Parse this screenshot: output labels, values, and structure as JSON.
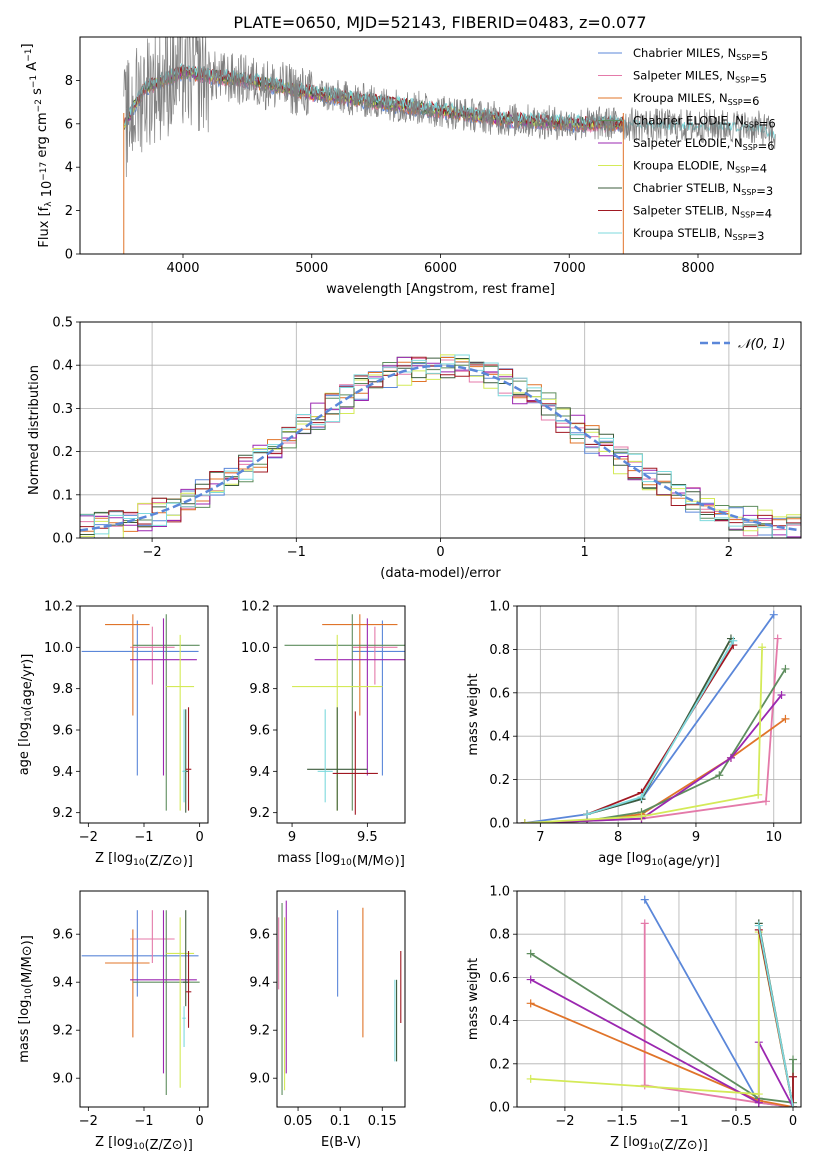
{
  "figure_title": "PLATE=0650, MJD=52143, FIBERID=0483, z=0.077",
  "series": [
    {
      "key": "chabrier_miles",
      "label": "Chabrier MILES, N_SSP=5",
      "color": "#5b87d9"
    },
    {
      "key": "salpeter_miles",
      "label": "Salpeter MILES, N_SSP=5",
      "color": "#e47aa9"
    },
    {
      "key": "kroupa_miles",
      "label": "Kroupa MILES, N_SSP=6",
      "color": "#e0742a"
    },
    {
      "key": "chabrier_elodie",
      "label": "Chabrier ELODIE, N_SSP=6",
      "color": "#5e8d5e"
    },
    {
      "key": "salpeter_elodie",
      "label": "Salpeter ELODIE, N_SSP=6",
      "color": "#9b27b0"
    },
    {
      "key": "kroupa_elodie",
      "label": "Kroupa ELODIE, N_SSP=4",
      "color": "#d4ea58"
    },
    {
      "key": "chabrier_stelib",
      "label": "Chabrier STELIB, N_SSP=3",
      "color": "#3d5c3d"
    },
    {
      "key": "salpeter_stelib",
      "label": "Salpeter STELIB, N_SSP=4",
      "color": "#a01822"
    },
    {
      "key": "kroupa_stelib",
      "label": "Kroupa STELIB, N_SSP=3",
      "color": "#7dd9dd"
    }
  ],
  "data_color": "#808080",
  "chart_data": [
    {
      "id": "spectrum",
      "type": "line",
      "xlabel": "wavelength [Angstrom, rest frame]",
      "ylabel": "Flux [f_λ 10^-17 erg cm^-2 s^-1 A^-1]",
      "xlim": [
        3200,
        8800
      ],
      "ylim": [
        0,
        10
      ],
      "xticks": [
        4000,
        5000,
        6000,
        7000,
        8000
      ],
      "yticks": [
        0,
        2,
        4,
        6,
        8
      ],
      "grid": false,
      "legend": "top-right",
      "continuum": {
        "x": [
          3550,
          3700,
          4000,
          4200,
          4500,
          5000,
          5500,
          6000,
          6500,
          7000,
          7400
        ],
        "y": [
          6.0,
          7.6,
          8.4,
          8.2,
          8.0,
          7.4,
          7.0,
          6.6,
          6.2,
          6.0,
          6.0
        ]
      },
      "red_tail": {
        "x": [
          7400,
          7800,
          8200,
          8500,
          8600
        ],
        "y": [
          6.0,
          5.9,
          5.9,
          5.8,
          5.4
        ]
      }
    },
    {
      "id": "residuals",
      "type": "histogram",
      "xlabel": "(data-model)/error",
      "ylabel": "Normed distribution",
      "xlim": [
        -2.5,
        2.5
      ],
      "ylim": [
        0,
        0.5
      ],
      "xticks": [
        -2,
        -1,
        0,
        1,
        2
      ],
      "yticks": [
        0.0,
        0.1,
        0.2,
        0.3,
        0.4,
        0.5
      ],
      "grid": true,
      "legend": "top-right",
      "reference_label": "𝒩(0, 1)",
      "reference_color": "#5b87d9",
      "bin_width": 0.1
    },
    {
      "id": "age_vs_Z",
      "type": "errorbar",
      "xlabel": "Z [log10(Z/Z⊙)]",
      "ylabel": "age  [log10(age/yr)]",
      "xlim": [
        -2.15,
        0.15
      ],
      "ylim": [
        9.15,
        10.2
      ],
      "xticks": [
        -2,
        -1,
        0
      ],
      "yticks": [
        9.2,
        9.4,
        9.6,
        9.8,
        10.0,
        10.2
      ],
      "grid": false,
      "points": [
        {
          "s": 0,
          "x": -1.12,
          "xerr": [
            1.0,
            1.1
          ],
          "y": 9.98,
          "yerr": [
            0.6,
            0.15
          ]
        },
        {
          "s": 1,
          "x": -0.85,
          "xerr": [
            0.4,
            0.4
          ],
          "y": 10.0,
          "yerr": [
            0.18,
            0.1
          ]
        },
        {
          "s": 2,
          "x": -1.2,
          "xerr": [
            0.5,
            0.3
          ],
          "y": 10.11,
          "yerr": [
            0.44,
            0.05
          ]
        },
        {
          "s": 3,
          "x": -0.6,
          "xerr": [
            0.6,
            0.6
          ],
          "y": 10.01,
          "yerr": [
            0.8,
            0.15
          ]
        },
        {
          "s": 4,
          "x": -0.65,
          "xerr": [
            0.6,
            0.6
          ],
          "y": 9.94,
          "yerr": [
            0.56,
            0.2
          ]
        },
        {
          "s": 5,
          "x": -0.35,
          "xerr": [
            0.25,
            0.25
          ],
          "y": 9.81,
          "yerr": [
            0.6,
            0.25
          ]
        },
        {
          "s": 6,
          "x": -0.25,
          "xerr": [
            0.05,
            0.05
          ],
          "y": 9.4,
          "yerr": [
            0.2,
            0.3
          ]
        },
        {
          "s": 7,
          "x": -0.2,
          "xerr": [
            0.05,
            0.05
          ],
          "y": 9.41,
          "yerr": [
            0.2,
            0.3
          ]
        },
        {
          "s": 8,
          "x": -0.28,
          "xerr": [
            0.03,
            0.03
          ],
          "y": 9.4,
          "yerr": [
            0.15,
            0.3
          ]
        }
      ]
    },
    {
      "id": "age_vs_mass",
      "type": "errorbar",
      "xlabel": "mass [log10(M/M⊙)]",
      "ylabel": "",
      "xlim": [
        8.9,
        9.75
      ],
      "ylim": [
        9.15,
        10.2
      ],
      "xticks": [
        9.0,
        9.5
      ],
      "yticks": [
        9.2,
        9.4,
        9.6,
        9.8,
        10.0,
        10.2
      ],
      "grid": false,
      "points": [
        {
          "s": 0,
          "x": 9.6,
          "xerr": [
            0.2,
            0.2
          ],
          "y": 9.98,
          "yerr": [
            0.6,
            0.15
          ]
        },
        {
          "s": 1,
          "x": 9.55,
          "xerr": [
            0.15,
            0.15
          ],
          "y": 10.0,
          "yerr": [
            0.18,
            0.1
          ]
        },
        {
          "s": 2,
          "x": 9.45,
          "xerr": [
            0.25,
            0.25
          ],
          "y": 10.11,
          "yerr": [
            0.44,
            0.05
          ]
        },
        {
          "s": 3,
          "x": 9.4,
          "xerr": [
            0.45,
            0.45
          ],
          "y": 10.01,
          "yerr": [
            0.8,
            0.15
          ]
        },
        {
          "s": 4,
          "x": 9.5,
          "xerr": [
            0.35,
            0.35
          ],
          "y": 9.94,
          "yerr": [
            0.56,
            0.2
          ]
        },
        {
          "s": 5,
          "x": 9.3,
          "xerr": [
            0.3,
            0.3
          ],
          "y": 9.81,
          "yerr": [
            0.6,
            0.25
          ]
        },
        {
          "s": 6,
          "x": 9.3,
          "xerr": [
            0.2,
            0.2
          ],
          "y": 9.41,
          "yerr": [
            0.2,
            0.3
          ]
        },
        {
          "s": 7,
          "x": 9.42,
          "xerr": [
            0.15,
            0.15
          ],
          "y": 9.39,
          "yerr": [
            0.2,
            0.3
          ]
        },
        {
          "s": 8,
          "x": 9.22,
          "xerr": [
            0.05,
            0.05
          ],
          "y": 9.4,
          "yerr": [
            0.15,
            0.3
          ]
        }
      ]
    },
    {
      "id": "weight_vs_age",
      "type": "line",
      "xlabel": "age  [log10(age/yr)]",
      "ylabel": "mass weight",
      "xlim": [
        6.7,
        10.35
      ],
      "ylim": [
        0,
        1
      ],
      "xticks": [
        7,
        8,
        9,
        10
      ],
      "yticks": [
        0.0,
        0.2,
        0.4,
        0.6,
        0.8,
        1.0
      ],
      "grid": true,
      "lines": [
        {
          "s": 0,
          "x": [
            6.8,
            7.6,
            8.3,
            10.0
          ],
          "y": [
            0.0,
            0.04,
            0.11,
            0.96
          ]
        },
        {
          "s": 1,
          "x": [
            6.8,
            7.6,
            8.3,
            9.9,
            10.05
          ],
          "y": [
            0.0,
            0.01,
            0.02,
            0.1,
            0.85
          ]
        },
        {
          "s": 2,
          "x": [
            6.8,
            7.6,
            8.3,
            9.45,
            10.15
          ],
          "y": [
            0.0,
            0.01,
            0.04,
            0.3,
            0.48
          ]
        },
        {
          "s": 3,
          "x": [
            6.8,
            7.6,
            8.3,
            9.3,
            10.15
          ],
          "y": [
            0.0,
            0.01,
            0.05,
            0.22,
            0.71
          ]
        },
        {
          "s": 4,
          "x": [
            6.8,
            7.6,
            8.3,
            9.45,
            10.1
          ],
          "y": [
            0.0,
            0.01,
            0.02,
            0.3,
            0.59
          ]
        },
        {
          "s": 5,
          "x": [
            6.8,
            8.3,
            9.8,
            9.85
          ],
          "y": [
            0.0,
            0.03,
            0.13,
            0.81
          ]
        },
        {
          "s": 6,
          "x": [
            7.6,
            8.3,
            9.45
          ],
          "y": [
            0.04,
            0.11,
            0.85
          ]
        },
        {
          "s": 7,
          "x": [
            7.6,
            8.3,
            9.48
          ],
          "y": [
            0.04,
            0.14,
            0.82
          ]
        },
        {
          "s": 8,
          "x": [
            7.6,
            8.3,
            9.48
          ],
          "y": [
            0.04,
            0.12,
            0.84
          ]
        }
      ]
    },
    {
      "id": "mass_vs_Z",
      "type": "errorbar",
      "xlabel": "Z [log10(Z/Z⊙)]",
      "ylabel": "mass [log10(M/M⊙)]",
      "xlim": [
        -2.15,
        0.15
      ],
      "ylim": [
        8.88,
        9.78
      ],
      "xticks": [
        -2,
        -1,
        0
      ],
      "yticks": [
        9.0,
        9.2,
        9.4,
        9.6
      ],
      "grid": false,
      "points": [
        {
          "s": 0,
          "x": -1.12,
          "xerr": [
            1.0,
            1.1
          ],
          "y": 9.51,
          "yerr": [
            0.17,
            0.19
          ]
        },
        {
          "s": 1,
          "x": -0.85,
          "xerr": [
            0.4,
            0.4
          ],
          "y": 9.58,
          "yerr": [
            0.1,
            0.12
          ]
        },
        {
          "s": 2,
          "x": -1.2,
          "xerr": [
            0.5,
            0.3
          ],
          "y": 9.48,
          "yerr": [
            0.31,
            0.14
          ]
        },
        {
          "s": 3,
          "x": -0.6,
          "xerr": [
            0.6,
            0.6
          ],
          "y": 9.4,
          "yerr": [
            0.47,
            0.3
          ]
        },
        {
          "s": 4,
          "x": -0.65,
          "xerr": [
            0.6,
            0.6
          ],
          "y": 9.41,
          "yerr": [
            0.39,
            0.29
          ]
        },
        {
          "s": 5,
          "x": -0.35,
          "xerr": [
            0.25,
            0.25
          ],
          "y": 9.52,
          "yerr": [
            0.56,
            0.15
          ]
        },
        {
          "s": 6,
          "x": -0.25,
          "xerr": [
            0.05,
            0.05
          ],
          "y": 9.4,
          "yerr": [
            0.1,
            0.3
          ]
        },
        {
          "s": 7,
          "x": -0.2,
          "xerr": [
            0.05,
            0.05
          ],
          "y": 9.36,
          "yerr": [
            0.15,
            0.17
          ]
        },
        {
          "s": 8,
          "x": -0.28,
          "xerr": [
            0.03,
            0.03
          ],
          "y": 9.25,
          "yerr": [
            0.12,
            0.05
          ]
        }
      ]
    },
    {
      "id": "mass_vs_ebv",
      "type": "errorbar",
      "xlabel": "E(B-V)",
      "ylabel": "",
      "xlim": [
        0.025,
        0.177
      ],
      "ylim": [
        8.88,
        9.78
      ],
      "xticks": [
        0.05,
        0.1,
        0.15
      ],
      "yticks": [
        9.0,
        9.2,
        9.4,
        9.6
      ],
      "grid": false,
      "points": [
        {
          "s": 0,
          "x": 0.097,
          "y": 9.52,
          "yerr": [
            0.18,
            0.18
          ]
        },
        {
          "s": 1,
          "x": 0.027,
          "y": 9.52,
          "yerr": [
            0.15,
            0.15
          ]
        },
        {
          "s": 2,
          "x": 0.127,
          "y": 9.44,
          "yerr": [
            0.27,
            0.27
          ]
        },
        {
          "s": 3,
          "x": 0.031,
          "y": 9.33,
          "yerr": [
            0.4,
            0.4
          ]
        },
        {
          "s": 4,
          "x": 0.036,
          "y": 9.38,
          "yerr": [
            0.36,
            0.36
          ]
        },
        {
          "s": 5,
          "x": 0.034,
          "y": 9.31,
          "yerr": [
            0.36,
            0.36
          ]
        },
        {
          "s": 6,
          "x": 0.167,
          "y": 9.24,
          "yerr": [
            0.17,
            0.17
          ]
        },
        {
          "s": 7,
          "x": 0.172,
          "y": 9.38,
          "yerr": [
            0.15,
            0.15
          ]
        },
        {
          "s": 8,
          "x": 0.165,
          "y": 9.24,
          "yerr": [
            0.17,
            0.17
          ]
        }
      ]
    },
    {
      "id": "weight_vs_Z",
      "type": "line",
      "xlabel": "Z [log10(Z/Z⊙)]",
      "ylabel": "mass weight",
      "xlim": [
        -2.42,
        0.07
      ],
      "ylim": [
        0,
        1
      ],
      "xticks": [
        -2.0,
        -1.5,
        -1.0,
        -0.5,
        0.0
      ],
      "yticks": [
        0.0,
        0.2,
        0.4,
        0.6,
        0.8,
        1.0
      ],
      "grid": true,
      "lines": [
        {
          "s": 0,
          "x": [
            -1.3,
            -0.3,
            0.0
          ],
          "y": [
            0.96,
            0.02,
            0.0
          ]
        },
        {
          "s": 1,
          "x": [
            -1.3,
            -1.3,
            -0.3,
            0.0
          ],
          "y": [
            0.85,
            0.1,
            0.02,
            0.0
          ]
        },
        {
          "s": 2,
          "x": [
            -2.3,
            -0.3,
            0.0
          ],
          "y": [
            0.48,
            0.03,
            0.0
          ]
        },
        {
          "s": 3,
          "x": [
            -2.3,
            -0.3,
            0.0,
            0.0
          ],
          "y": [
            0.71,
            0.04,
            0.02,
            0.22
          ]
        },
        {
          "s": 4,
          "x": [
            -2.3,
            -0.3,
            -0.3,
            0.0
          ],
          "y": [
            0.59,
            0.02,
            0.3,
            0.0
          ]
        },
        {
          "s": 5,
          "x": [
            -2.3,
            -0.3,
            -0.3,
            0.0
          ],
          "y": [
            0.13,
            0.06,
            0.81,
            0.0
          ]
        },
        {
          "s": 6,
          "x": [
            -0.3,
            0.0
          ],
          "y": [
            0.85,
            0.0
          ]
        },
        {
          "s": 7,
          "x": [
            -0.3,
            0.0,
            0.0
          ],
          "y": [
            0.82,
            0.0,
            0.14
          ]
        },
        {
          "s": 8,
          "x": [
            -0.3,
            0.0
          ],
          "y": [
            0.84,
            0.0
          ]
        }
      ]
    }
  ]
}
